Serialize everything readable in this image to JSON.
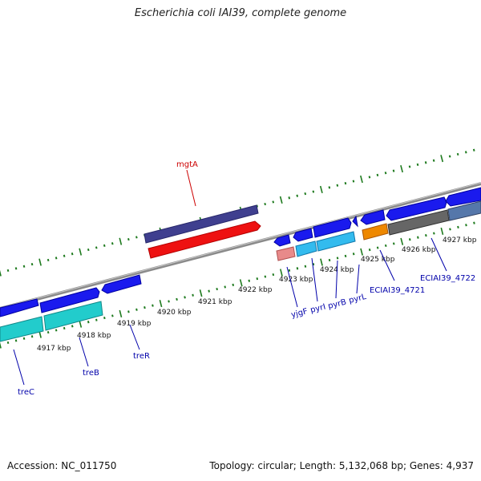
{
  "title": "Escherichia coli IAI39, complete genome",
  "footer": {
    "accession": "Accession: NC_011750",
    "summary": "Topology: circular; Length: 5,132,068 bp; Genes: 4,937"
  },
  "colors": {
    "backbone": "#8a8a8a",
    "ticks": "#1e7a1e",
    "gene_label": "#0000aa",
    "feature_label": "#cc0000"
  },
  "scale": {
    "labels": [
      "4917 kbp",
      "4918 kbp",
      "4919 kbp",
      "4920 kbp",
      "4921 kbp",
      "4922 kbp",
      "4923 kbp",
      "4924 kbp",
      "4925 kbp",
      "4926 kbp",
      "4927 kbp"
    ]
  },
  "gene_labels": [
    {
      "name": "treC"
    },
    {
      "name": "treB"
    },
    {
      "name": "treR"
    },
    {
      "name": "yjgF"
    },
    {
      "name": "pyrI"
    },
    {
      "name": "pyrB"
    },
    {
      "name": "pyrL"
    },
    {
      "name": "ECIAI39_4721"
    },
    {
      "name": "ECIAI39_4722"
    }
  ],
  "feature_labels": [
    {
      "name": "mgtA"
    }
  ]
}
